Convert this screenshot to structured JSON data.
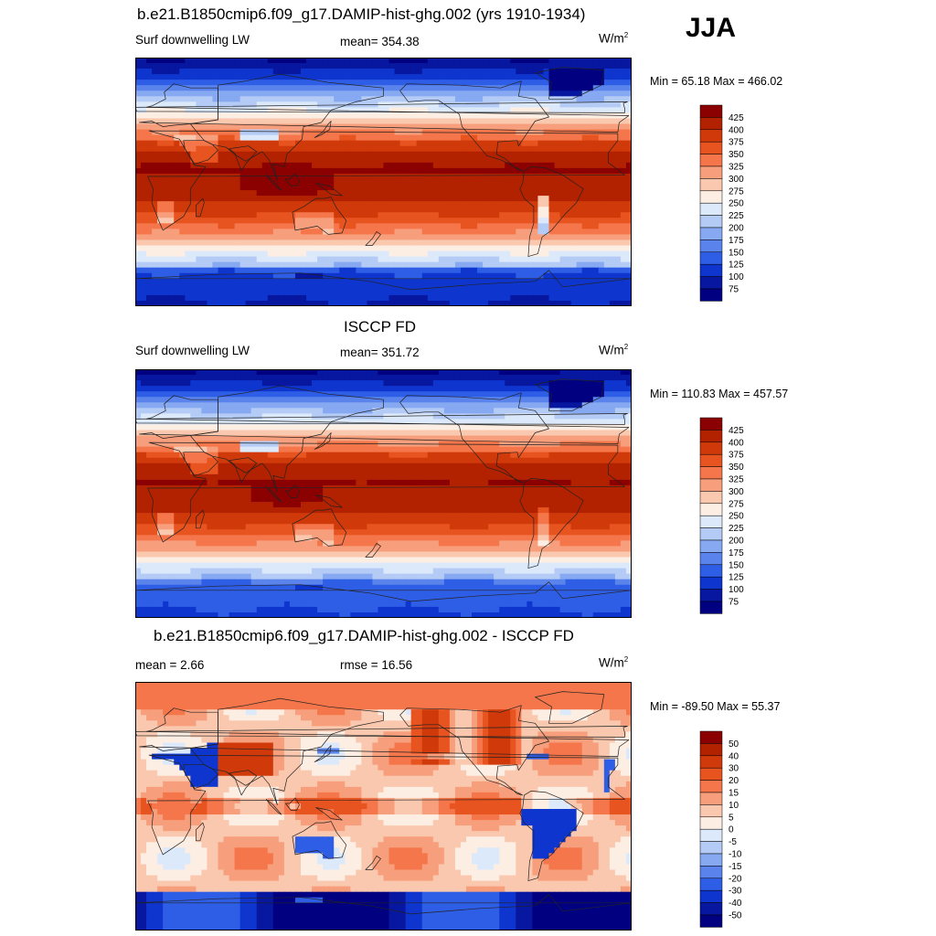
{
  "season": "JJA",
  "chart_data": [
    {
      "type": "heatmap",
      "title": "b.e21.B1850cmip6.f09_g17.DAMIP-hist-ghg.002 (yrs 1910-1934)",
      "left_label": "Surf downwelling LW",
      "center_label": "mean= 354.38",
      "units": "W/m",
      "units_exp": "2",
      "min_max": "Min =  65.18 Max = 466.02",
      "field": "model",
      "colorbar": {
        "levels": [
          "425",
          "400",
          "375",
          "350",
          "325",
          "300",
          "275",
          "250",
          "225",
          "200",
          "175",
          "150",
          "125",
          "100",
          "75"
        ],
        "colors": [
          "#8b0000",
          "#b22200",
          "#d03a0a",
          "#e85420",
          "#f4764a",
          "#f79f7c",
          "#fac8ae",
          "#fdeee4",
          "#dce9fb",
          "#b4cbf6",
          "#86a9f2",
          "#5a84ec",
          "#2f5ee6",
          "#0e36cf",
          "#07179f",
          "#000080"
        ]
      }
    },
    {
      "type": "heatmap",
      "title": "ISCCP FD",
      "left_label": "Surf downwelling LW",
      "center_label": "mean= 351.72",
      "units": "W/m",
      "units_exp": "2",
      "min_max": "Min = 110.83 Max = 457.57",
      "field": "obs",
      "colorbar": {
        "levels": [
          "425",
          "400",
          "375",
          "350",
          "325",
          "300",
          "275",
          "250",
          "225",
          "200",
          "175",
          "150",
          "125",
          "100",
          "75"
        ],
        "colors": [
          "#8b0000",
          "#b22200",
          "#d03a0a",
          "#e85420",
          "#f4764a",
          "#f79f7c",
          "#fac8ae",
          "#fdeee4",
          "#dce9fb",
          "#b4cbf6",
          "#86a9f2",
          "#5a84ec",
          "#2f5ee6",
          "#0e36cf",
          "#07179f",
          "#000080"
        ]
      }
    },
    {
      "type": "heatmap",
      "title": "b.e21.B1850cmip6.f09_g17.DAMIP-hist-ghg.002 - ISCCP FD",
      "left_label": "mean =   2.66",
      "center_label": "rmse =  16.56",
      "units": "W/m",
      "units_exp": "2",
      "min_max": "Min = -89.50 Max =  55.37",
      "field": "diff",
      "colorbar": {
        "levels": [
          "50",
          "40",
          "30",
          "20",
          "15",
          "10",
          "5",
          "0",
          "-5",
          "-10",
          "-15",
          "-20",
          "-30",
          "-40",
          "-50"
        ],
        "colors": [
          "#8b0000",
          "#b22200",
          "#d03a0a",
          "#e85420",
          "#f4764a",
          "#f79f7c",
          "#fac8ae",
          "#fdeee4",
          "#dce9fb",
          "#b4cbf6",
          "#86a9f2",
          "#5a84ec",
          "#2f5ee6",
          "#0e36cf",
          "#07179f",
          "#000080"
        ]
      }
    }
  ]
}
